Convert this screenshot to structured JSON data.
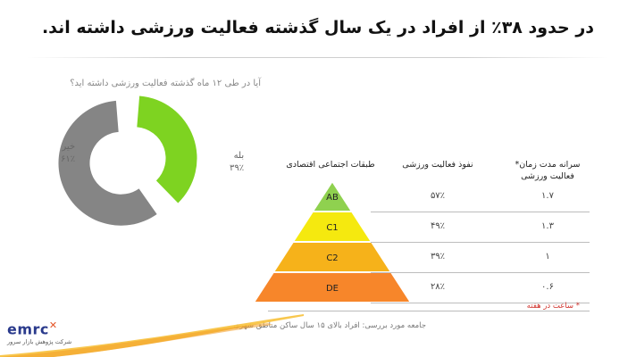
{
  "title": "در حدود ۳۸٪ از افراد در یک سال گذشته فعالیت ورزشی داشته اند.",
  "pie": {
    "question": "آیا در طی ۱۲ ماه گذشته فعالیت ورزشی داشته اید؟",
    "yes_label": "بله",
    "yes_value": "۳۹٪",
    "no_label": "خیر",
    "no_value": "۶۱٪"
  },
  "table": {
    "col_class": "طبقات اجتماعی اقتصادی",
    "col_penetration": "نفوذ فعالیت ورزشی",
    "col_time": "سرانه مدت زمان* فعالیت ورزشی",
    "rows": [
      {
        "class": "AB",
        "penetration": "۵۷٪",
        "time": "۱.۷"
      },
      {
        "class": "C1",
        "penetration": "۴۹٪",
        "time": "۱.۳"
      },
      {
        "class": "C2",
        "penetration": "۳۹٪",
        "time": "۱"
      },
      {
        "class": "DE",
        "penetration": "۲۸٪",
        "time": "۰.۶"
      }
    ]
  },
  "footnote": {
    "note": "* ساعت در هفته",
    "population": "جامعه مورد بررسی: افراد بالای ۱۵ سال ساکن مناطق شهری"
  },
  "logo": {
    "word": "emrc",
    "subtitle": "شرکت پژوهش بازار سرور"
  },
  "colors": {
    "yes": "#7ed321",
    "no": "#858585",
    "AB": "#8fd14f",
    "C1": "#f5e90f",
    "C2": "#f6b21a",
    "DE": "#f7862a",
    "accent": "#f7a823"
  },
  "chart_data": [
    {
      "type": "pie",
      "title": "آیا در طی ۱۲ ماه گذشته فعالیت ورزشی داشته اید؟",
      "categories": [
        "بله",
        "خیر"
      ],
      "values": [
        39,
        61
      ]
    },
    {
      "type": "table",
      "columns": [
        "سرانه مدت زمان* فعالیت ورزشی",
        "نفوذ فعالیت ورزشی",
        "طبقات اجتماعی اقتصادی"
      ],
      "categories": [
        "AB",
        "C1",
        "C2",
        "DE"
      ],
      "series": [
        {
          "name": "نفوذ فعالیت ورزشی",
          "values": [
            57,
            49,
            39,
            28
          ]
        },
        {
          "name": "سرانه مدت زمان* فعالیت ورزشی",
          "values": [
            1.7,
            1.3,
            1,
            0.6
          ]
        }
      ]
    }
  ]
}
